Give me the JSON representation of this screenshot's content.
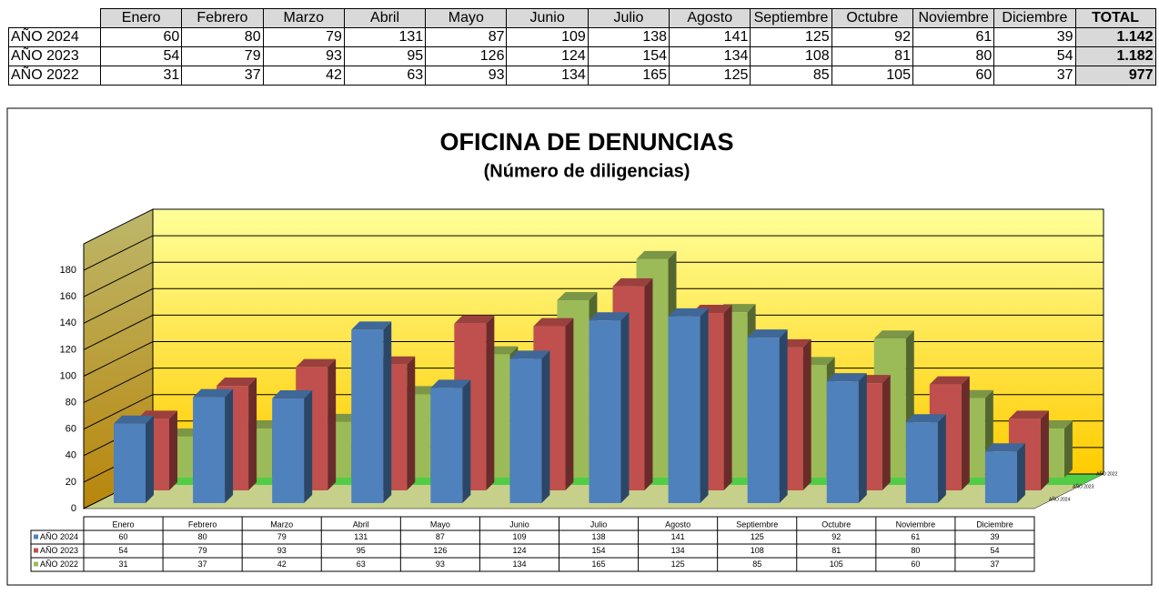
{
  "table": {
    "total_header": "TOTAL",
    "totals": [
      "1.142",
      "1.182",
      "977"
    ]
  },
  "chart_data": {
    "type": "bar",
    "title": "OFICINA DE DENUNCIAS",
    "subtitle": "(Número de diligencias)",
    "categories": [
      "Enero",
      "Febrero",
      "Marzo",
      "Abril",
      "Mayo",
      "Junio",
      "Julio",
      "Agosto",
      "Septiembre",
      "Octubre",
      "Noviembre",
      "Diciembre"
    ],
    "series": [
      {
        "name": "AÑO 2024",
        "color": "#4f81bd",
        "values": [
          60,
          80,
          79,
          131,
          87,
          109,
          138,
          141,
          125,
          92,
          61,
          39
        ]
      },
      {
        "name": "AÑO 2023",
        "color": "#c0504d",
        "values": [
          54,
          79,
          93,
          95,
          126,
          124,
          154,
          134,
          108,
          81,
          80,
          54
        ]
      },
      {
        "name": "AÑO 2022",
        "color": "#9bbb59",
        "values": [
          31,
          37,
          42,
          63,
          93,
          134,
          165,
          125,
          85,
          105,
          60,
          37
        ]
      }
    ],
    "ylim": [
      0,
      200
    ],
    "yticks": [
      0,
      20,
      40,
      60,
      80,
      100,
      120,
      140,
      160,
      180
    ],
    "grid": true
  }
}
